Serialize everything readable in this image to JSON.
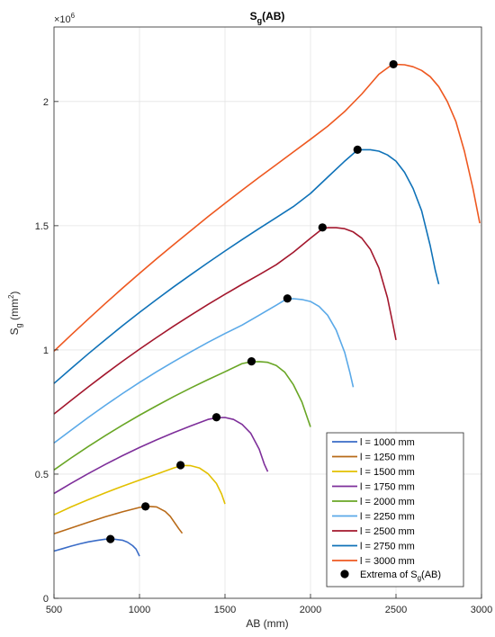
{
  "chart_data": {
    "type": "line",
    "title": "S",
    "title_sub": "g",
    "title_rest": "(AB)",
    "xlabel": "AB (mm)",
    "ylabel": "S",
    "ylabel_sub": "g",
    "ylabel_rest": " (mm",
    "ylabel_sup": "2",
    "ylabel_end": ")",
    "y_exponent_base": "×10",
    "y_exponent_power": "6",
    "xlim": [
      500,
      3000
    ],
    "ylim": [
      0,
      2300000
    ],
    "x_ticks": [
      500,
      1000,
      1500,
      2000,
      2500,
      3000
    ],
    "x_tick_labels": [
      "500",
      "1000",
      "1500",
      "2000",
      "2500",
      "3000"
    ],
    "y_ticks": [
      0,
      500000,
      1000000,
      1500000,
      2000000
    ],
    "y_tick_labels": [
      "0",
      "0.5",
      "1",
      "1.5",
      "2"
    ],
    "grid": true,
    "legend_position": "bottom-right",
    "series": [
      {
        "name": "l = 1000 mm",
        "color": "#3a6cc7",
        "x": [
          500,
          550,
          600,
          650,
          700,
          750,
          800,
          850,
          900,
          930,
          960,
          980,
          990,
          1000
        ],
        "y": [
          190000,
          200000,
          210000,
          219000,
          227000,
          233000,
          238000,
          238500,
          234000,
          226000,
          212000,
          198000,
          184000,
          170000
        ]
      },
      {
        "name": "l = 1250 mm",
        "color": "#b86a18",
        "x": [
          500,
          600,
          700,
          800,
          900,
          1000,
          1050,
          1100,
          1150,
          1180,
          1210,
          1230,
          1250
        ],
        "y": [
          260000,
          283000,
          306000,
          328000,
          348000,
          366000,
          370000,
          368000,
          350000,
          330000,
          300000,
          280000,
          262000
        ]
      },
      {
        "name": "l = 1500 mm",
        "color": "#e2c000",
        "x": [
          500,
          600,
          700,
          800,
          900,
          1000,
          1100,
          1200,
          1250,
          1300,
          1350,
          1400,
          1450,
          1480,
          1500
        ],
        "y": [
          336000,
          368000,
          397000,
          425000,
          451000,
          476000,
          500000,
          525000,
          535000,
          534000,
          525000,
          502000,
          462000,
          420000,
          380000
        ]
      },
      {
        "name": "l = 1750 mm",
        "color": "#7e2f9a",
        "x": [
          500,
          600,
          700,
          800,
          900,
          1000,
          1100,
          1200,
          1300,
          1400,
          1450,
          1500,
          1550,
          1600,
          1650,
          1700,
          1730,
          1750
        ],
        "y": [
          422000,
          463000,
          502000,
          539000,
          574000,
          607000,
          638000,
          667000,
          694000,
          720000,
          727000,
          728000,
          720000,
          700000,
          665000,
          600000,
          540000,
          510000
        ]
      },
      {
        "name": "l = 2000 mm",
        "color": "#69a625",
        "x": [
          500,
          600,
          700,
          800,
          900,
          1000,
          1100,
          1200,
          1300,
          1400,
          1500,
          1600,
          1650,
          1700,
          1750,
          1800,
          1850,
          1900,
          1950,
          1980,
          2000
        ],
        "y": [
          517000,
          565000,
          611000,
          655000,
          697000,
          737000,
          775000,
          812000,
          847000,
          880000,
          912000,
          945000,
          952000,
          953000,
          950000,
          937000,
          910000,
          860000,
          790000,
          730000,
          690000
        ]
      },
      {
        "name": "l = 2250 mm",
        "color": "#5aa9e8",
        "x": [
          500,
          600,
          700,
          800,
          900,
          1000,
          1100,
          1200,
          1300,
          1400,
          1500,
          1600,
          1700,
          1800,
          1860,
          1900,
          1950,
          2000,
          2050,
          2100,
          2150,
          2200,
          2230,
          2250
        ],
        "y": [
          625000,
          677000,
          728000,
          777000,
          824000,
          869000,
          912000,
          953000,
          992000,
          1030000,
          1066000,
          1100000,
          1140000,
          1180000,
          1205000,
          1206000,
          1203000,
          1195000,
          1175000,
          1140000,
          1080000,
          990000,
          910000,
          850000
        ]
      },
      {
        "name": "l = 2500 mm",
        "color": "#a3172d",
        "x": [
          500,
          600,
          700,
          800,
          900,
          1000,
          1100,
          1200,
          1300,
          1400,
          1500,
          1600,
          1700,
          1800,
          1900,
          2000,
          2070,
          2100,
          2150,
          2200,
          2250,
          2300,
          2350,
          2400,
          2450,
          2480,
          2500
        ],
        "y": [
          742000,
          797000,
          851000,
          903000,
          954000,
          1003000,
          1050000,
          1096000,
          1140000,
          1183000,
          1224000,
          1264000,
          1303000,
          1343000,
          1393000,
          1450000,
          1488000,
          1492000,
          1492000,
          1488000,
          1475000,
          1450000,
          1405000,
          1330000,
          1210000,
          1110000,
          1040000
        ]
      },
      {
        "name": "l = 2750 mm",
        "color": "#0f72b8",
        "x": [
          500,
          600,
          700,
          800,
          900,
          1000,
          1100,
          1200,
          1300,
          1400,
          1500,
          1600,
          1700,
          1800,
          1900,
          2000,
          2100,
          2200,
          2270,
          2300,
          2350,
          2400,
          2450,
          2500,
          2550,
          2600,
          2650,
          2700,
          2730,
          2750
        ],
        "y": [
          865000,
          925000,
          984000,
          1041000,
          1097000,
          1151000,
          1203000,
          1254000,
          1303000,
          1351000,
          1398000,
          1444000,
          1489000,
          1533000,
          1577000,
          1630000,
          1695000,
          1760000,
          1802000,
          1806000,
          1806000,
          1800000,
          1785000,
          1760000,
          1715000,
          1650000,
          1560000,
          1420000,
          1320000,
          1265000
        ]
      },
      {
        "name": "l = 3000 mm",
        "color": "#ee5820",
        "x": [
          500,
          600,
          700,
          800,
          900,
          1000,
          1100,
          1200,
          1300,
          1400,
          1500,
          1600,
          1700,
          1800,
          1900,
          2000,
          2100,
          2200,
          2300,
          2400,
          2480,
          2550,
          2600,
          2650,
          2700,
          2750,
          2800,
          2850,
          2900,
          2950,
          2990
        ],
        "y": [
          995000,
          1060000,
          1124000,
          1187000,
          1248000,
          1308000,
          1367000,
          1424000,
          1480000,
          1536000,
          1590000,
          1643000,
          1695000,
          1746000,
          1797000,
          1848000,
          1900000,
          1960000,
          2030000,
          2110000,
          2150000,
          2148000,
          2140000,
          2125000,
          2100000,
          2060000,
          2000000,
          1920000,
          1800000,
          1650000,
          1510000
        ]
      }
    ],
    "extrema_legend": "Extrema of S",
    "extrema_legend_sub": "g",
    "extrema_legend_rest": "(AB)",
    "extrema": {
      "x": [
        830,
        1035,
        1240,
        1450,
        1655,
        1865,
        2070,
        2275,
        2485
      ],
      "y": [
        238500,
        370000,
        536000,
        729000,
        954000,
        1207000,
        1493000,
        1806000,
        2150000
      ]
    }
  }
}
